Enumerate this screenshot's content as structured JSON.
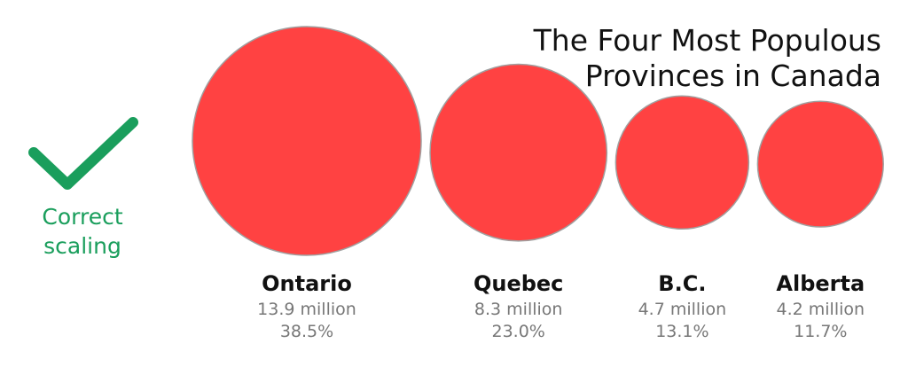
{
  "title_lines": [
    "The Four Most Populous",
    "Provinces in Canada"
  ],
  "badge": {
    "icon": "checkmark-icon",
    "label_lines": [
      "Correct",
      "scaling"
    ],
    "color": "#1a9e5c"
  },
  "chart_data": {
    "type": "bubble",
    "title": "The Four Most Populous Provinces in Canada",
    "categories": [
      "Ontario",
      "Quebec",
      "B.C.",
      "Alberta"
    ],
    "population_labels": [
      "13.9 million",
      "8.3 million",
      "4.7 million",
      "4.2 million"
    ],
    "share_labels": [
      "38.5%",
      "23.0%",
      "13.1%",
      "11.7%"
    ],
    "values": [
      13.9,
      8.3,
      4.7,
      4.2
    ],
    "unit": "million",
    "scaling": "area",
    "fill_color": "#ff4242",
    "stroke_color": "#a0a0a0"
  }
}
